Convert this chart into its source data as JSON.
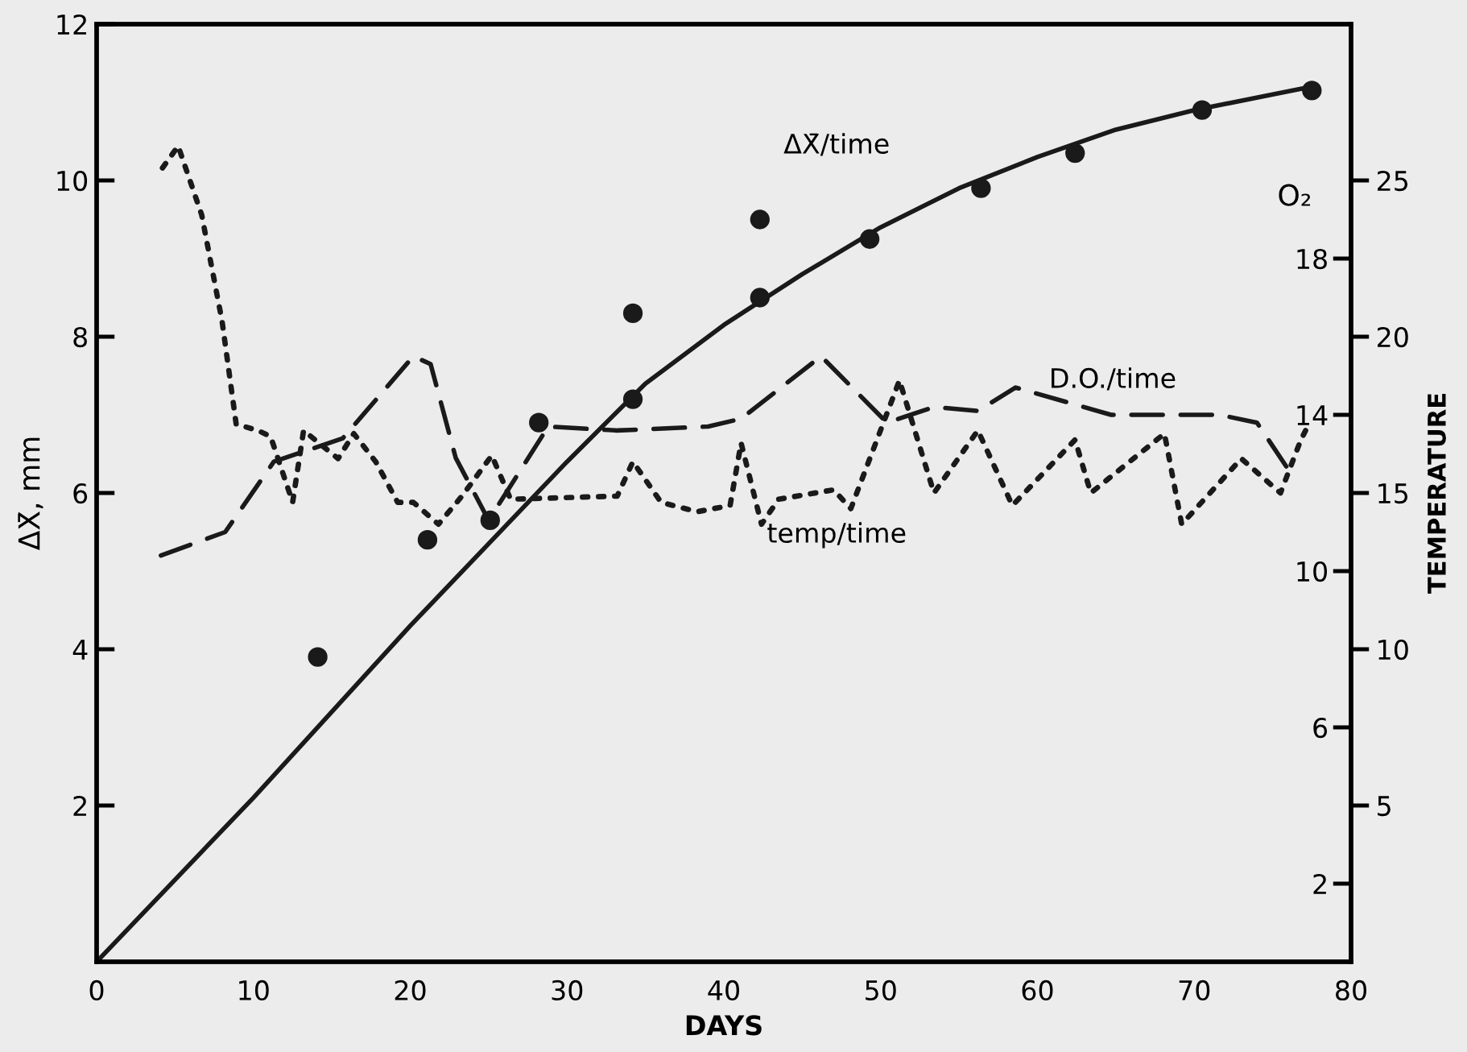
{
  "chart_data": {
    "type": "line",
    "xlabel": "DAYS",
    "ylabel": "ΔX̄, mm",
    "y2label": "O₂",
    "y3label": "TEMPERATURE",
    "xlim": [
      0,
      80
    ],
    "xticks": [
      0,
      10,
      20,
      30,
      40,
      50,
      60,
      70,
      80
    ],
    "ylim": [
      0,
      12
    ],
    "yticks": [
      2,
      4,
      6,
      8,
      10,
      12
    ],
    "y2lim": [
      0,
      24
    ],
    "y2ticks": [
      2,
      6,
      10,
      14,
      18
    ],
    "y3lim": [
      0,
      30
    ],
    "y3ticks": [
      5,
      10,
      15,
      20,
      25
    ],
    "grid": false,
    "legend": false,
    "series": [
      {
        "name": "ΔX̄/time",
        "line_style": "solid",
        "color": "#1a1a1a",
        "x": [
          0,
          10,
          20,
          30,
          35,
          40,
          45,
          50,
          55,
          60,
          65,
          70,
          75,
          77.5
        ],
        "values": [
          0,
          2.1,
          4.3,
          6.4,
          7.4,
          8.15,
          8.8,
          9.4,
          9.9,
          10.3,
          10.65,
          10.9,
          11.1,
          11.2
        ]
      },
      {
        "type": "scatter",
        "marker": "circle",
        "color": "#1a1a1a",
        "x": [
          14.1,
          21.1,
          25.1,
          28.2,
          34.2,
          34.2,
          42.3,
          42.3,
          49.3,
          56.4,
          62.4,
          70.5,
          77.5
        ],
        "values": [
          3.9,
          5.4,
          5.65,
          6.9,
          7.2,
          8.3,
          8.5,
          9.5,
          9.25,
          9.9,
          10.35,
          10.9,
          11.15
        ]
      },
      {
        "name": "D.O./time",
        "line_style": "dashed",
        "axis": "y2",
        "color": "#1a1a1a",
        "x": [
          4.1,
          8.2,
          11.3,
          15.7,
          20.2,
          21.3,
          22.9,
          25,
          28.8,
          33.2,
          39,
          41.1,
          46.2,
          50.4,
          53.4,
          56.2,
          58.6,
          64.7,
          71.6,
          74,
          76
        ],
        "values": [
          10.4,
          11.0,
          12.8,
          13.4,
          15.5,
          15.3,
          12.9,
          11.3,
          13.7,
          13.6,
          13.7,
          13.9,
          15.5,
          13.8,
          14.2,
          14.1,
          14.7,
          14.0,
          14.0,
          13.8,
          12.6
        ]
      },
      {
        "name": "temp/time",
        "line_style": "dotted",
        "axis": "y3",
        "color": "#1a1a1a",
        "x": [
          4.2,
          5.2,
          6.7,
          8.0,
          8.9,
          10.3,
          11.1,
          12.5,
          13.2,
          15.4,
          16.4,
          17.8,
          19.2,
          20.2,
          21.8,
          23.3,
          25.2,
          26.4,
          33.2,
          34.2,
          36,
          38.3,
          40.4,
          41.1,
          42.4,
          43.5,
          47.0,
          48.1,
          51.2,
          53.4,
          56.2,
          58.4,
          62.4,
          63.4,
          68.1,
          69.2,
          73,
          75.5,
          76.8,
          77.1
        ],
        "values": [
          25.4,
          26.1,
          23.9,
          20.5,
          17.2,
          17.0,
          16.8,
          14.7,
          17.0,
          16.1,
          16.9,
          16.0,
          14.7,
          14.7,
          14.0,
          14.9,
          16.2,
          14.8,
          14.9,
          16.0,
          14.7,
          14.4,
          14.6,
          16.6,
          14.0,
          14.8,
          15.1,
          14.5,
          18.6,
          15.0,
          17.0,
          14.6,
          16.7,
          15.0,
          16.9,
          14.0,
          16.1,
          15.0,
          16.7,
          17.0
        ]
      }
    ]
  }
}
